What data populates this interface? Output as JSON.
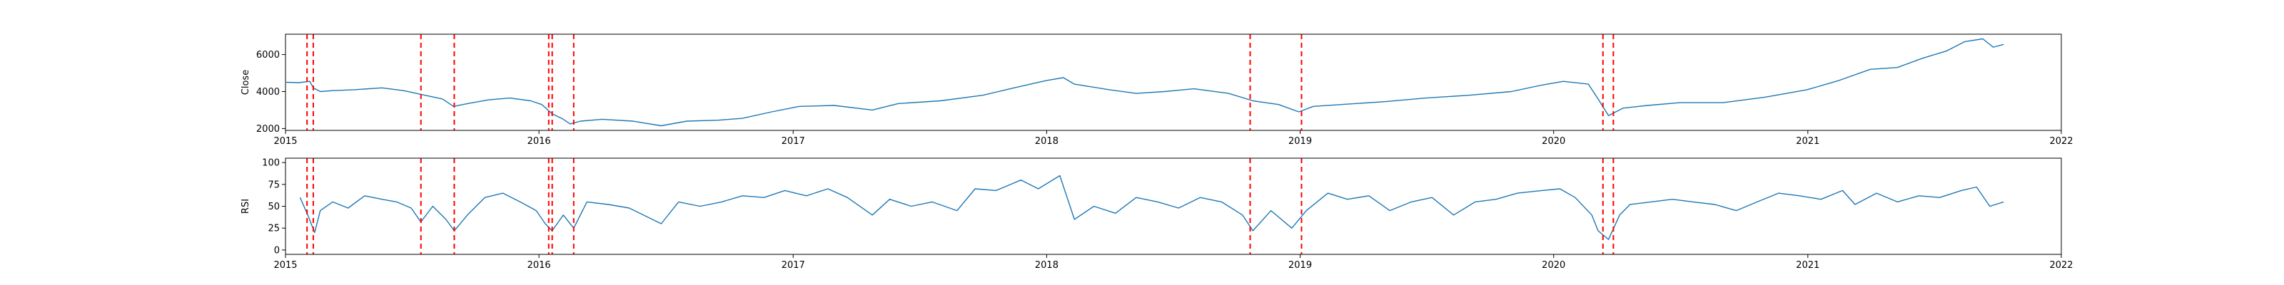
{
  "chart_data": [
    {
      "type": "line",
      "ylabel": "Close",
      "xlabel": "",
      "xlim": [
        "2015-01-01",
        "2022-01-01"
      ],
      "ylim": [
        1900,
        7100
      ],
      "yticks": [
        2000,
        4000,
        6000
      ],
      "xticks": [
        "2015",
        "2016",
        "2017",
        "2018",
        "2019",
        "2020",
        "2021",
        "2022"
      ],
      "series": [
        {
          "color": "#1f77b4",
          "points": [
            [
              "2015-01-02",
              4500
            ],
            [
              "2015-01-20",
              4480
            ],
            [
              "2015-02-05",
              4550
            ],
            [
              "2015-02-10",
              4200
            ],
            [
              "2015-02-20",
              4000
            ],
            [
              "2015-03-10",
              4050
            ],
            [
              "2015-04-10",
              4100
            ],
            [
              "2015-05-20",
              4200
            ],
            [
              "2015-06-20",
              4050
            ],
            [
              "2015-07-15",
              3850
            ],
            [
              "2015-08-15",
              3600
            ],
            [
              "2015-08-31",
              3200
            ],
            [
              "2015-09-20",
              3350
            ],
            [
              "2015-10-20",
              3550
            ],
            [
              "2015-11-20",
              3650
            ],
            [
              "2015-12-20",
              3500
            ],
            [
              "2016-01-05",
              3300
            ],
            [
              "2016-01-20",
              2800
            ],
            [
              "2016-02-05",
              2500
            ],
            [
              "2016-02-15",
              2250
            ],
            [
              "2016-03-01",
              2400
            ],
            [
              "2016-04-01",
              2500
            ],
            [
              "2016-05-15",
              2400
            ],
            [
              "2016-06-25",
              2150
            ],
            [
              "2016-08-01",
              2400
            ],
            [
              "2016-09-15",
              2450
            ],
            [
              "2016-10-20",
              2550
            ],
            [
              "2016-12-01",
              2900
            ],
            [
              "2017-01-10",
              3200
            ],
            [
              "2017-03-01",
              3250
            ],
            [
              "2017-04-25",
              3000
            ],
            [
              "2017-06-01",
              3350
            ],
            [
              "2017-08-01",
              3500
            ],
            [
              "2017-10-01",
              3800
            ],
            [
              "2017-11-15",
              4200
            ],
            [
              "2018-01-01",
              4600
            ],
            [
              "2018-01-25",
              4750
            ],
            [
              "2018-02-10",
              4400
            ],
            [
              "2018-04-01",
              4100
            ],
            [
              "2018-05-10",
              3900
            ],
            [
              "2018-06-20",
              4000
            ],
            [
              "2018-08-01",
              4150
            ],
            [
              "2018-09-20",
              3900
            ],
            [
              "2018-10-25",
              3500
            ],
            [
              "2018-12-01",
              3300
            ],
            [
              "2018-12-30",
              2900
            ],
            [
              "2019-01-20",
              3200
            ],
            [
              "2019-03-01",
              3300
            ],
            [
              "2019-05-01",
              3450
            ],
            [
              "2019-07-01",
              3650
            ],
            [
              "2019-09-01",
              3800
            ],
            [
              "2019-11-01",
              4000
            ],
            [
              "2019-12-15",
              4350
            ],
            [
              "2020-01-15",
              4550
            ],
            [
              "2020-02-20",
              4400
            ],
            [
              "2020-03-05",
              3600
            ],
            [
              "2020-03-20",
              2700
            ],
            [
              "2020-04-10",
              3100
            ],
            [
              "2020-05-15",
              3250
            ],
            [
              "2020-07-01",
              3400
            ],
            [
              "2020-09-01",
              3400
            ],
            [
              "2020-11-01",
              3700
            ],
            [
              "2020-12-31",
              4100
            ],
            [
              "2021-02-15",
              4600
            ],
            [
              "2021-04-01",
              5200
            ],
            [
              "2021-05-10",
              5300
            ],
            [
              "2021-06-15",
              5800
            ],
            [
              "2021-07-20",
              6200
            ],
            [
              "2021-08-15",
              6700
            ],
            [
              "2021-09-10",
              6850
            ],
            [
              "2021-09-25",
              6400
            ],
            [
              "2021-10-10",
              6550
            ]
          ]
        }
      ],
      "vlines": [
        "2015-02-01",
        "2015-02-10",
        "2015-07-15",
        "2015-09-01",
        "2016-01-15",
        "2016-01-20",
        "2016-02-20",
        "2018-10-21",
        "2019-01-03",
        "2020-03-12",
        "2020-03-27"
      ],
      "vline_color": "#ff0000",
      "grid": false
    },
    {
      "type": "line",
      "ylabel": "RSI",
      "xlabel": "",
      "xlim": [
        "2015-01-01",
        "2022-01-01"
      ],
      "ylim": [
        -5,
        105
      ],
      "yticks": [
        0,
        25,
        50,
        75,
        100
      ],
      "xticks": [
        "2015",
        "2016",
        "2017",
        "2018",
        "2019",
        "2020",
        "2021",
        "2022"
      ],
      "series": [
        {
          "color": "#1f77b4",
          "points": [
            [
              "2015-01-22",
              60
            ],
            [
              "2015-02-01",
              42
            ],
            [
              "2015-02-08",
              28
            ],
            [
              "2015-02-12",
              20
            ],
            [
              "2015-02-20",
              45
            ],
            [
              "2015-03-10",
              55
            ],
            [
              "2015-04-01",
              48
            ],
            [
              "2015-04-25",
              62
            ],
            [
              "2015-05-20",
              58
            ],
            [
              "2015-06-10",
              55
            ],
            [
              "2015-07-01",
              48
            ],
            [
              "2015-07-15",
              32
            ],
            [
              "2015-08-01",
              50
            ],
            [
              "2015-08-20",
              35
            ],
            [
              "2015-09-01",
              22
            ],
            [
              "2015-09-20",
              40
            ],
            [
              "2015-10-15",
              60
            ],
            [
              "2015-11-10",
              65
            ],
            [
              "2015-12-05",
              55
            ],
            [
              "2015-12-28",
              45
            ],
            [
              "2016-01-10",
              30
            ],
            [
              "2016-01-20",
              22
            ],
            [
              "2016-02-05",
              40
            ],
            [
              "2016-02-20",
              25
            ],
            [
              "2016-03-10",
              55
            ],
            [
              "2016-04-10",
              52
            ],
            [
              "2016-05-10",
              48
            ],
            [
              "2016-06-25",
              30
            ],
            [
              "2016-07-20",
              55
            ],
            [
              "2016-08-20",
              50
            ],
            [
              "2016-09-20",
              55
            ],
            [
              "2016-10-20",
              62
            ],
            [
              "2016-11-20",
              60
            ],
            [
              "2016-12-20",
              68
            ],
            [
              "2017-01-20",
              62
            ],
            [
              "2017-02-20",
              70
            ],
            [
              "2017-03-20",
              60
            ],
            [
              "2017-04-25",
              40
            ],
            [
              "2017-05-20",
              58
            ],
            [
              "2017-06-20",
              50
            ],
            [
              "2017-07-20",
              55
            ],
            [
              "2017-08-25",
              45
            ],
            [
              "2017-09-20",
              70
            ],
            [
              "2017-10-20",
              68
            ],
            [
              "2017-11-25",
              80
            ],
            [
              "2017-12-20",
              70
            ],
            [
              "2018-01-20",
              85
            ],
            [
              "2018-02-10",
              35
            ],
            [
              "2018-03-10",
              50
            ],
            [
              "2018-04-10",
              42
            ],
            [
              "2018-05-10",
              60
            ],
            [
              "2018-06-10",
              55
            ],
            [
              "2018-07-10",
              48
            ],
            [
              "2018-08-10",
              60
            ],
            [
              "2018-09-10",
              55
            ],
            [
              "2018-10-10",
              40
            ],
            [
              "2018-10-25",
              22
            ],
            [
              "2018-11-20",
              45
            ],
            [
              "2018-12-20",
              25
            ],
            [
              "2019-01-10",
              45
            ],
            [
              "2019-02-10",
              65
            ],
            [
              "2019-03-10",
              58
            ],
            [
              "2019-04-10",
              62
            ],
            [
              "2019-05-10",
              45
            ],
            [
              "2019-06-10",
              55
            ],
            [
              "2019-07-10",
              60
            ],
            [
              "2019-08-10",
              40
            ],
            [
              "2019-09-10",
              55
            ],
            [
              "2019-10-10",
              58
            ],
            [
              "2019-11-10",
              65
            ],
            [
              "2019-12-15",
              68
            ],
            [
              "2020-01-10",
              70
            ],
            [
              "2020-02-01",
              60
            ],
            [
              "2020-02-25",
              40
            ],
            [
              "2020-03-05",
              22
            ],
            [
              "2020-03-20",
              12
            ],
            [
              "2020-04-05",
              40
            ],
            [
              "2020-04-20",
              52
            ],
            [
              "2020-05-20",
              55
            ],
            [
              "2020-06-20",
              58
            ],
            [
              "2020-07-20",
              55
            ],
            [
              "2020-08-20",
              52
            ],
            [
              "2020-09-20",
              45
            ],
            [
              "2020-10-20",
              55
            ],
            [
              "2020-11-20",
              65
            ],
            [
              "2020-12-20",
              62
            ],
            [
              "2021-01-20",
              58
            ],
            [
              "2021-02-20",
              68
            ],
            [
              "2021-03-10",
              52
            ],
            [
              "2021-04-10",
              65
            ],
            [
              "2021-05-10",
              55
            ],
            [
              "2021-06-10",
              62
            ],
            [
              "2021-07-10",
              60
            ],
            [
              "2021-08-10",
              68
            ],
            [
              "2021-09-01",
              72
            ],
            [
              "2021-09-20",
              50
            ],
            [
              "2021-10-10",
              55
            ]
          ]
        }
      ],
      "vlines": [
        "2015-02-01",
        "2015-02-10",
        "2015-07-15",
        "2015-09-01",
        "2016-01-15",
        "2016-01-20",
        "2016-02-20",
        "2018-10-21",
        "2019-01-03",
        "2020-03-12",
        "2020-03-27"
      ],
      "vline_color": "#ff0000",
      "grid": false
    }
  ]
}
